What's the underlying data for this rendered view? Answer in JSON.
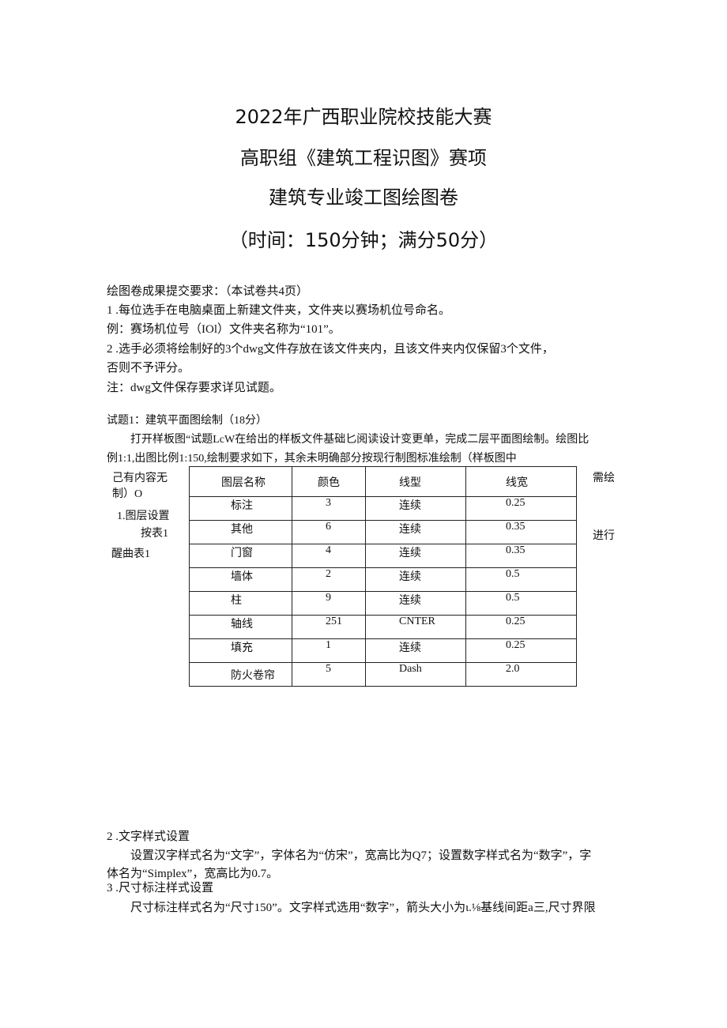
{
  "titles": [
    "2022年广西职业院校技能大赛",
    "高职组《建筑工程识图》赛项",
    "建筑专业竣工图绘图卷",
    "（时间：150分钟；满分50分）"
  ],
  "intro": [
    "绘图卷成果提交要求：（本试卷共4页）",
    "1  .每位选手在电脑桌面上新建文件夹，文件夹以赛场机位号命名。",
    "例：赛场机位号（IOl）文件夹名称为“101”。",
    "2  .选手必须将绘制好的3个dwg文件存放在该文件夹内，且该文件夹内仅保留3个文件，",
    "否则不予评分。",
    "注：dwg文件保存要求详见试题。"
  ],
  "q1": {
    "title": "试题1：建筑平面图绘制（18分）",
    "p1": "打开样板图“试题LcW在给出的样板文件基础匕阅读设计变更单，完成二层平面图绘制。绘图比",
    "p2": "例1:1,出图比例1:150,绘制要求如下，其余未明确部分按现行制图标准绘制（样板图中"
  },
  "side_left": [
    "己有内容无",
    "制）O",
    "1.图层设置",
    "按表1",
    "醒曲表1"
  ],
  "side_right": [
    "需绘",
    "进行"
  ],
  "table": {
    "headers": [
      "图层名称",
      "颜色",
      "线型",
      "线宽"
    ],
    "rows": [
      [
        "标注",
        "3",
        "连续",
        "0.25"
      ],
      [
        "其他",
        "6",
        "连续",
        "0.35"
      ],
      [
        "门窗",
        "4",
        "连续",
        "0.35"
      ],
      [
        "墙体",
        "2",
        "连续",
        "0.5"
      ],
      [
        "柱",
        "9",
        "连续",
        "0.5"
      ],
      [
        "轴线",
        "251",
        "CNTER",
        "0.25"
      ],
      [
        "填充",
        "1",
        "连续",
        "0.25"
      ],
      [
        "防火卷帘",
        "5",
        "Dash",
        "2.0"
      ]
    ]
  },
  "bottom": [
    "2  .文字样式设置",
    "设置汉字样式名为“文字”，字体名为“仿宋”，宽高比为Q7；设置数字样式名为“数字”，字",
    "体名为“Simplex”，宽高比为0.7。",
    "3  .尺寸标注样式设置",
    "尺寸标注样式名为“尺寸150”。文字样式选用“数字”，箭头大小为ι.⅛基线间距a三,尺寸界限"
  ]
}
